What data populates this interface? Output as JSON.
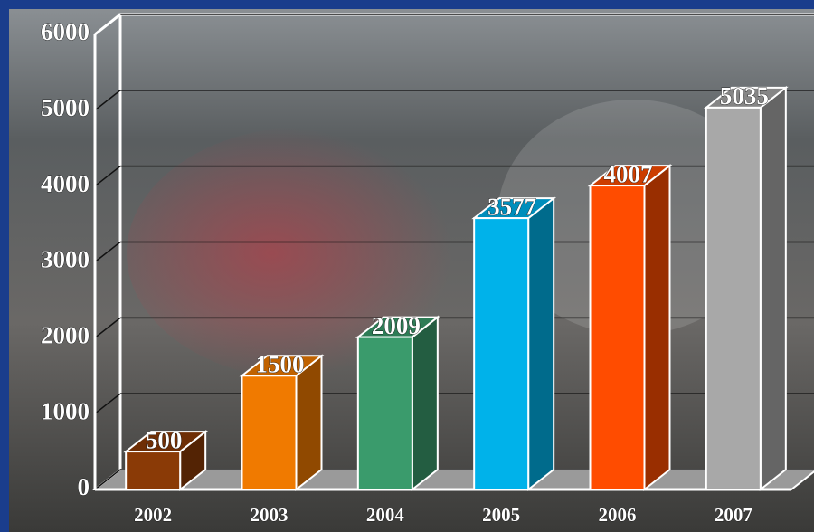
{
  "chart_data": {
    "type": "bar3d",
    "categories": [
      "2002",
      "2003",
      "2004",
      "2005",
      "2006",
      "2007"
    ],
    "values": [
      500,
      1500,
      2009,
      3577,
      4007,
      5035
    ],
    "colors": [
      "#8a3a06",
      "#f07a00",
      "#3a9b6c",
      "#00b2ea",
      "#ff4c00",
      "#a8a8a8"
    ],
    "ylim": [
      0,
      6000
    ],
    "yticks": [
      0,
      1000,
      2000,
      3000,
      4000,
      5000,
      6000
    ],
    "grid": true
  }
}
